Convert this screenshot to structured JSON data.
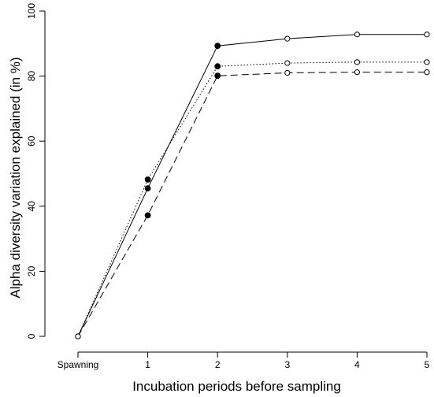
{
  "chart_data": {
    "type": "line",
    "title": "",
    "xlabel": "Incubation periods before sampling",
    "ylabel": "Alpha diversity variation explained (in %)",
    "categories": [
      "Spawning",
      "1",
      "2",
      "3",
      "4",
      "5"
    ],
    "x": [
      0,
      1,
      2,
      3,
      4,
      5
    ],
    "ylim": [
      0,
      100
    ],
    "yticks": [
      0,
      20,
      40,
      60,
      80,
      100
    ],
    "grid": false,
    "legend": "none",
    "series": [
      {
        "line_style": "solid",
        "values": [
          0,
          45.5,
          89.3,
          91.5,
          92.8,
          92.8
        ],
        "markers": [
          "open",
          "filled",
          "filled",
          "open",
          "open",
          "open"
        ]
      },
      {
        "line_style": "dotted",
        "values": [
          0,
          48.2,
          83.0,
          84.0,
          84.3,
          84.3
        ],
        "markers": [
          "open",
          "filled",
          "filled",
          "open",
          "open",
          "open"
        ]
      },
      {
        "line_style": "dashed",
        "values": [
          0,
          37.2,
          80.1,
          81.0,
          81.2,
          81.2
        ],
        "markers": [
          "open",
          "filled",
          "filled",
          "open",
          "open",
          "open"
        ]
      }
    ],
    "colors": {
      "line": "#000000",
      "background": "#ffffff"
    }
  }
}
